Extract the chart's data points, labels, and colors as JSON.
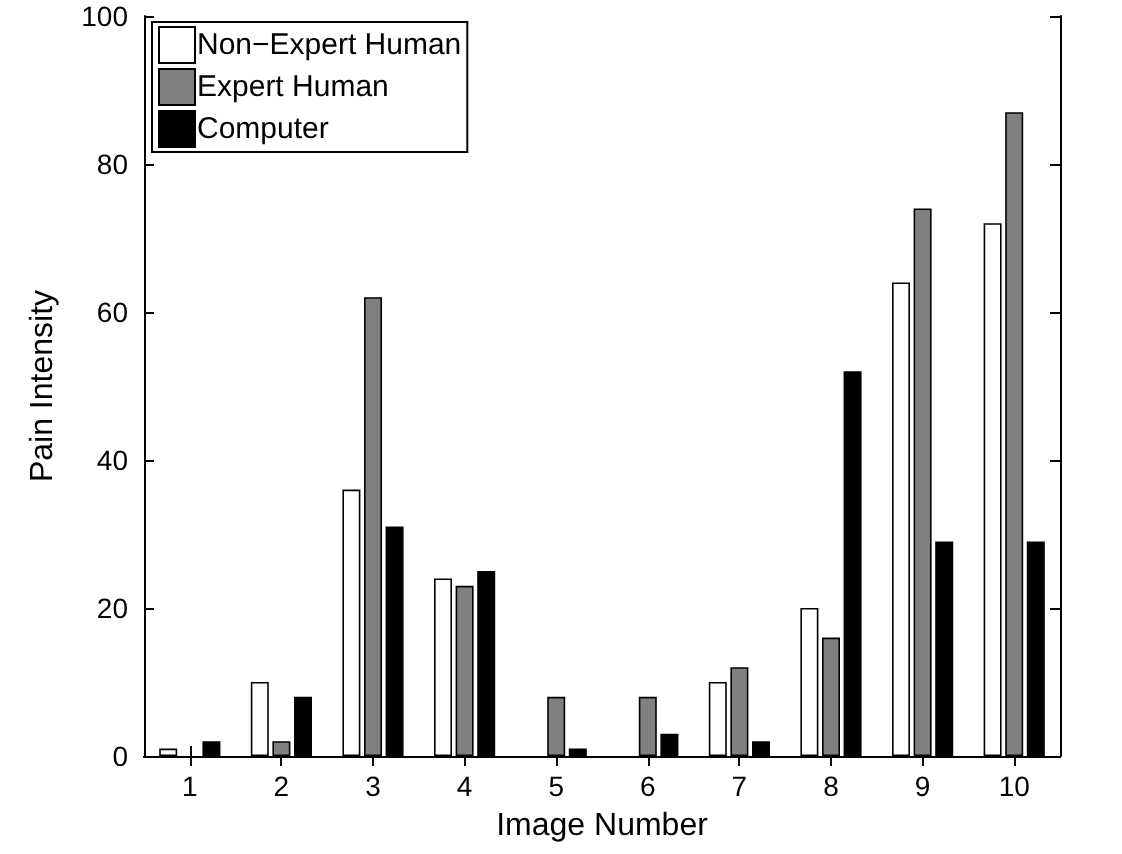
{
  "chart_data": {
    "type": "bar",
    "xlabel": "Image Number",
    "ylabel": "Pain Intensity",
    "categories": [
      "1",
      "2",
      "3",
      "4",
      "5",
      "6",
      "7",
      "8",
      "9",
      "10"
    ],
    "series": [
      {
        "name": "Non−Expert Human",
        "color": "#ffffff",
        "values": [
          1,
          10,
          36,
          24,
          0,
          0,
          10,
          20,
          64,
          72
        ]
      },
      {
        "name": "Expert Human",
        "color": "#808080",
        "values": [
          0,
          2,
          62,
          23,
          8,
          8,
          12,
          16,
          74,
          87
        ]
      },
      {
        "name": "Computer",
        "color": "#000000",
        "values": [
          2,
          8,
          31,
          25,
          1,
          3,
          2,
          52,
          29,
          29
        ]
      }
    ],
    "ylim": [
      0,
      100
    ],
    "yticks": [
      0,
      20,
      40,
      60,
      80,
      100
    ],
    "grid": false,
    "legend": "top left"
  }
}
